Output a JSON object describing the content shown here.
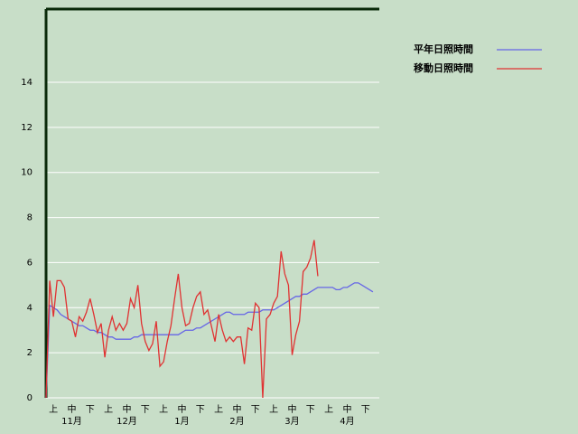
{
  "chart_data": {
    "type": "line",
    "categories": [
      null,
      null,
      "上",
      null,
      null,
      null,
      null,
      "中",
      null,
      null,
      null,
      null,
      "下",
      null,
      null,
      null,
      null,
      "上",
      null,
      null,
      null,
      null,
      "中",
      null,
      null,
      null,
      null,
      "下",
      null,
      null,
      null,
      null,
      "上",
      null,
      null,
      null,
      null,
      "中",
      null,
      null,
      null,
      null,
      "下",
      null,
      null,
      null,
      null,
      "上",
      null,
      null,
      null,
      null,
      "中",
      null,
      null,
      null,
      null,
      "下",
      null,
      null,
      null,
      null,
      "上",
      null,
      null,
      null,
      null,
      "中",
      null,
      null,
      null,
      null,
      "下",
      null,
      null,
      null,
      null,
      "上",
      null,
      null,
      null,
      null,
      "中",
      null,
      null,
      null,
      null,
      "下",
      null,
      null,
      null
    ],
    "months": [
      "11月",
      "12月",
      "1月",
      "2月",
      "3月",
      "4月"
    ],
    "series": [
      {
        "name": "平年日照時間",
        "color": "#6666e6",
        "values": [
          0,
          4.1,
          4.0,
          3.9,
          3.7,
          3.6,
          3.5,
          3.4,
          3.3,
          3.2,
          3.2,
          3.1,
          3.0,
          3.0,
          2.9,
          2.9,
          2.8,
          2.7,
          2.7,
          2.6,
          2.6,
          2.6,
          2.6,
          2.6,
          2.7,
          2.7,
          2.8,
          2.8,
          2.8,
          2.8,
          2.8,
          2.8,
          2.8,
          2.8,
          2.8,
          2.8,
          2.8,
          2.9,
          3.0,
          3.0,
          3.0,
          3.1,
          3.1,
          3.2,
          3.3,
          3.4,
          3.5,
          3.6,
          3.7,
          3.8,
          3.8,
          3.7,
          3.7,
          3.7,
          3.7,
          3.8,
          3.8,
          3.8,
          3.8,
          3.9,
          3.9,
          3.9,
          3.9,
          4.0,
          4.1,
          4.2,
          4.3,
          4.4,
          4.5,
          4.5,
          4.6,
          4.6,
          4.7,
          4.8,
          4.9,
          4.9,
          4.9,
          4.9,
          4.9,
          4.8,
          4.8,
          4.9,
          4.9,
          5.0,
          5.1,
          5.1,
          5.0,
          4.9,
          4.8,
          4.7,
          null
        ]
      },
      {
        "name": "移動日照時間",
        "color": "#e03232",
        "values": [
          0,
          5.2,
          3.6,
          5.2,
          5.2,
          4.9,
          3.5,
          3.4,
          2.7,
          3.6,
          3.4,
          3.8,
          4.4,
          3.7,
          2.9,
          3.3,
          1.8,
          3.0,
          3.6,
          3.0,
          3.3,
          3.0,
          3.3,
          4.4,
          4.0,
          5.0,
          3.3,
          2.5,
          2.1,
          2.4,
          3.4,
          1.4,
          1.6,
          2.5,
          3.2,
          4.4,
          5.5,
          4.0,
          3.2,
          3.3,
          4.0,
          4.5,
          4.7,
          3.7,
          3.9,
          3.2,
          2.5,
          3.7,
          3.0,
          2.5,
          2.7,
          2.5,
          2.7,
          2.7,
          1.5,
          3.1,
          3.0,
          4.2,
          4.0,
          0,
          3.5,
          3.7,
          4.2,
          4.5,
          6.5,
          5.5,
          5.0,
          1.9,
          2.8,
          3.4,
          5.6,
          5.8,
          6.2,
          7.0,
          5.4,
          null,
          null,
          null,
          null,
          null,
          null,
          null,
          null,
          null,
          null,
          null,
          null,
          null,
          null,
          null,
          null
        ]
      }
    ],
    "ylim": [
      0,
      17.25
    ],
    "yticks": [
      0,
      2,
      4,
      6,
      8,
      10,
      12,
      14
    ],
    "grid": true
  }
}
